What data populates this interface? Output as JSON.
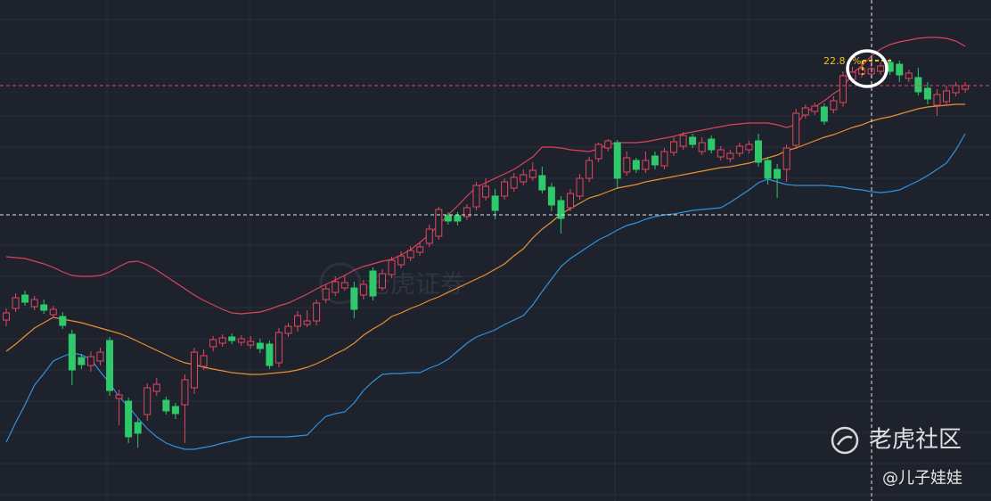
{
  "chart_data": {
    "type": "candlestick",
    "ylim": [
      0,
      562
    ],
    "up_color": "#e2475d",
    "down_color": "#2fc86b",
    "open": [
      203,
      216,
      231,
      218,
      220,
      209,
      207,
      187,
      161,
      152,
      157,
      180,
      115,
      112,
      88,
      97,
      123,
      113,
      106,
      108,
      127,
      151,
      173,
      177,
      184,
      178,
      175,
      177,
      176,
      155,
      188,
      196,
      198,
      202,
      226,
      234,
      239,
      239,
      231,
      258,
      239,
      254,
      265,
      273,
      279,
      289,
      297,
      320,
      320,
      319,
      330,
      341,
      342,
      342,
      351,
      358,
      363,
      365,
      352,
      337,
      329,
      342,
      362,
      384,
      396,
      402,
      369,
      382,
      372,
      387,
      376,
      391,
      398,
      408,
      392,
      406,
      386,
      384,
      390,
      394,
      404,
      382,
      372,
      372,
      399,
      433,
      437,
      442,
      439,
      447,
      473,
      479,
      479,
      482,
      492,
      490,
      474,
      475,
      463,
      444,
      448,
      458,
      462
    ],
    "high": [
      216,
      233,
      236,
      230,
      226,
      219,
      212,
      192,
      165,
      168,
      172,
      184,
      125,
      116,
      92,
      132,
      138,
      117,
      110,
      142,
      172,
      170,
      185,
      187,
      188,
      186,
      185,
      182,
      180,
      194,
      200,
      213,
      214,
      226,
      243,
      252,
      254,
      246,
      248,
      262,
      260,
      274,
      280,
      286,
      290,
      310,
      330,
      324,
      324,
      333,
      358,
      362,
      350,
      362,
      368,
      372,
      380,
      375,
      357,
      342,
      350,
      367,
      386,
      402,
      406,
      405,
      392,
      385,
      392,
      392,
      396,
      408,
      414,
      412,
      408,
      410,
      398,
      394,
      402,
      404,
      412,
      386,
      378,
      400,
      440,
      445,
      447,
      446,
      454,
      482,
      487,
      494,
      496,
      492,
      496,
      494,
      484,
      486,
      470,
      462,
      466,
      470,
      470
    ],
    "low": [
      196,
      212,
      219,
      214,
      210,
      205,
      193,
      130,
      148,
      145,
      152,
      118,
      85,
      65,
      60,
      90,
      118,
      97,
      92,
      65,
      120,
      147,
      168,
      173,
      176,
      174,
      171,
      166,
      148,
      150,
      184,
      190,
      195,
      197,
      222,
      230,
      236,
      205,
      226,
      225,
      236,
      250,
      261,
      269,
      275,
      285,
      293,
      310,
      309,
      315,
      326,
      337,
      316,
      338,
      347,
      354,
      359,
      345,
      325,
      300,
      325,
      338,
      358,
      380,
      392,
      350,
      365,
      368,
      368,
      372,
      372,
      387,
      394,
      396,
      388,
      390,
      382,
      380,
      386,
      390,
      375,
      355,
      340,
      358,
      395,
      429,
      433,
      422,
      435,
      442,
      469,
      475,
      475,
      478,
      478,
      470,
      470,
      455,
      445,
      432,
      445,
      454,
      458
    ],
    "close": [
      211,
      228,
      223,
      226,
      214,
      215,
      197,
      147,
      153,
      162,
      167,
      124,
      119,
      72,
      76,
      127,
      131,
      101,
      98,
      136,
      167,
      163,
      181,
      183,
      180,
      182,
      179,
      171,
      152,
      189,
      196,
      208,
      202,
      222,
      238,
      246,
      245,
      215,
      243,
      230,
      255,
      270,
      275,
      281,
      285,
      305,
      327,
      314,
      314,
      329,
      354,
      353,
      326,
      358,
      363,
      366,
      371,
      349,
      332,
      317,
      345,
      362,
      382,
      400,
      404,
      362,
      385,
      372,
      382,
      377,
      392,
      403,
      410,
      400,
      402,
      394,
      394,
      390,
      398,
      400,
      380,
      362,
      362,
      396,
      435,
      441,
      443,
      426,
      449,
      477,
      481,
      485,
      485,
      488,
      482,
      478,
      480,
      459,
      451,
      456,
      460,
      466,
      466
    ],
    "bands": [
      {
        "color": "#d9435c",
        "values": [
          274,
          273,
          272,
          269,
          266,
          262,
          257,
          253,
          252,
          252,
          253,
          257,
          263,
          268,
          269,
          265,
          259,
          252,
          245,
          238,
          231,
          225,
          220,
          215,
          211,
          210,
          211,
          212,
          215,
          219,
          222,
          227,
          232,
          238,
          243,
          248,
          253,
          259,
          263,
          266,
          269,
          271,
          276,
          282,
          290,
          299,
          310,
          321,
          331,
          342,
          352,
          357,
          362,
          367,
          372,
          379,
          386,
          397,
          397,
          396,
          394,
          393,
          392,
          395,
          400,
          402,
          402,
          402,
          403,
          405,
          407,
          409,
          412,
          414,
          416,
          418,
          420,
          422,
          423,
          424,
          424,
          424,
          422,
          419,
          422,
          436,
          442,
          449,
          457,
          464,
          480,
          488,
          499,
          507,
          512,
          515,
          517,
          519,
          520,
          520,
          519,
          516,
          510
        ]
      },
      {
        "color": "#e8912f",
        "values": [
          168,
          176,
          185,
          194,
          200,
          206,
          204,
          202,
          200,
          197,
          194,
          191,
          188,
          184,
          179,
          174,
          169,
          164,
          159,
          155,
          153,
          150,
          148,
          146,
          144,
          143,
          142,
          142,
          143,
          144,
          145,
          147,
          150,
          154,
          159,
          165,
          170,
          177,
          186,
          193,
          199,
          207,
          211,
          216,
          220,
          225,
          229,
          234,
          239,
          244,
          249,
          254,
          260,
          266,
          275,
          283,
          295,
          305,
          313,
          322,
          328,
          334,
          340,
          343,
          347,
          351,
          353,
          355,
          358,
          360,
          362,
          364,
          366,
          368,
          370,
          372,
          374,
          375,
          377,
          379,
          382,
          385,
          388,
          393,
          396,
          400,
          404,
          408,
          411,
          415,
          419,
          422,
          426,
          429,
          431,
          434,
          437,
          440,
          442,
          443,
          444,
          445,
          445
        ]
      },
      {
        "color": "#2f93e0",
        "values": [
          66,
          88,
          108,
          130,
          143,
          157,
          162,
          166,
          164,
          159,
          145,
          132,
          117,
          106,
          93,
          81,
          72,
          65,
          61,
          58,
          58,
          60,
          62,
          65,
          67,
          70,
          72,
          72,
          72,
          72,
          72,
          73,
          74,
          85,
          95,
          98,
          100,
          110,
          124,
          134,
          142,
          143,
          143,
          144,
          144,
          149,
          153,
          159,
          168,
          177,
          184,
          188,
          192,
          198,
          203,
          208,
          220,
          235,
          249,
          263,
          272,
          279,
          286,
          293,
          298,
          304,
          309,
          312,
          316,
          319,
          321,
          322,
          324,
          326,
          327,
          328,
          329,
          335,
          342,
          349,
          357,
          361,
          358,
          355,
          354,
          354,
          354,
          354,
          353,
          352,
          350,
          349,
          347,
          346,
          347,
          349,
          354,
          359,
          365,
          372,
          379,
          394,
          412
        ]
      }
    ],
    "annotation": "22.8",
    "annotation_unit": "%",
    "watermark": "老虎证券",
    "brand": "老虎社区",
    "author": "@儿子娃娃"
  }
}
